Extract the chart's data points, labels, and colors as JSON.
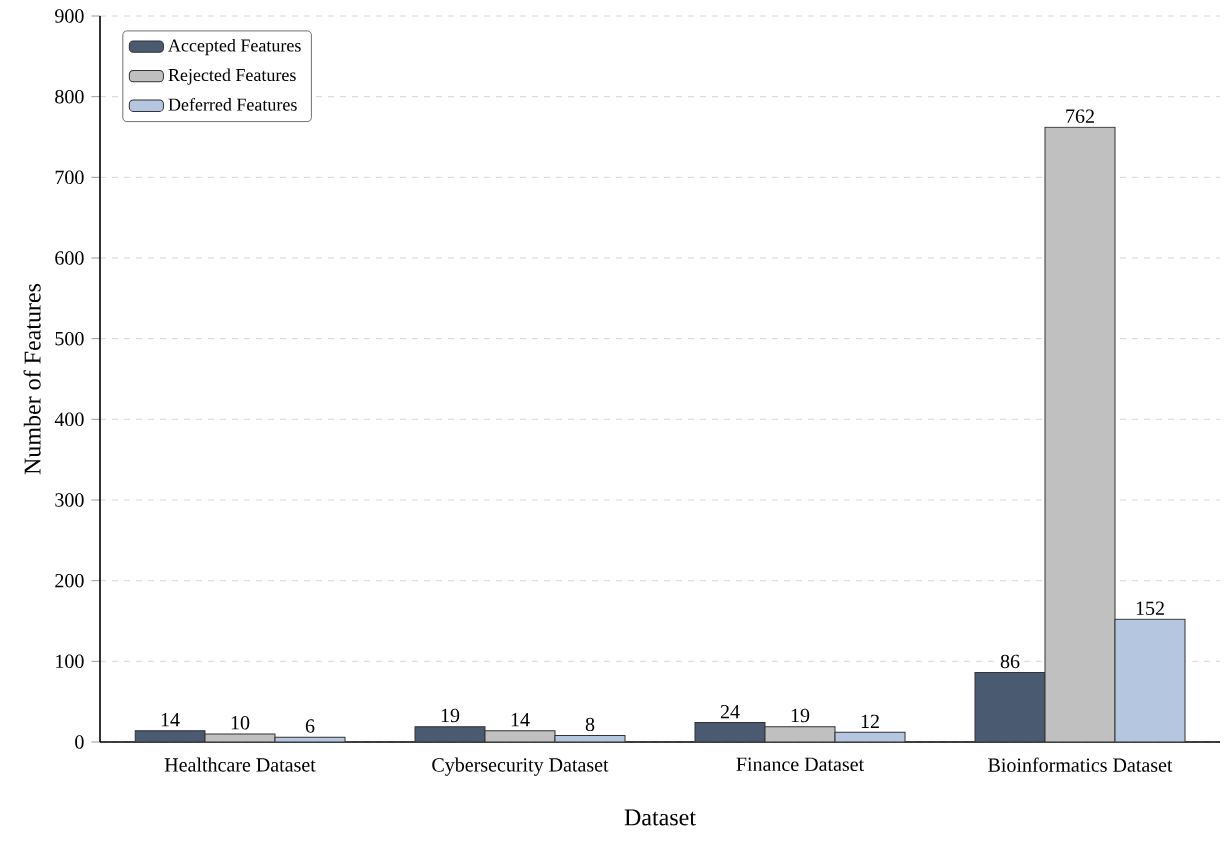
{
  "chart_data": {
    "type": "bar",
    "categories": [
      "Healthcare Dataset",
      "Cybersecurity Dataset",
      "Finance Dataset",
      "Bioinformatics Dataset"
    ],
    "series": [
      {
        "name": "Accepted Features",
        "color": "#4a5a70",
        "values": [
          14,
          19,
          24,
          86
        ]
      },
      {
        "name": "Rejected Features",
        "color": "#c0c0c0",
        "values": [
          10,
          14,
          19,
          762
        ]
      },
      {
        "name": "Deferred Features",
        "color": "#b4c6e0",
        "values": [
          6,
          8,
          12,
          152
        ]
      }
    ],
    "xlabel": "Dataset",
    "ylabel": "Number of Features",
    "ylim": [
      0,
      900
    ],
    "yticks": [
      0,
      100,
      200,
      300,
      400,
      500,
      600,
      700,
      800,
      900
    ],
    "grid": "y",
    "legend": "top left",
    "data_labels": true
  }
}
